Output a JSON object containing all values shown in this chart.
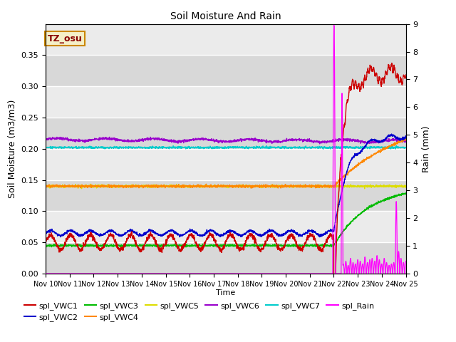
{
  "title": "Soil Moisture And Rain",
  "ylabel_left": "Soil Moisture (m3/m3)",
  "ylabel_right": "Rain (mm)",
  "xlabel": "Time",
  "annotation": "TZ_osu",
  "annotation_bg": "#f5f0c8",
  "annotation_border": "#cc8800",
  "annotation_text_color": "#880000",
  "ylim_left": [
    0.0,
    0.4
  ],
  "ylim_right": [
    0.0,
    9.0
  ],
  "xtick_labels": [
    "Nov 10",
    "Nov 11",
    "Nov 12",
    "Nov 13",
    "Nov 14",
    "Nov 15",
    "Nov 16",
    "Nov 17",
    "Nov 18",
    "Nov 19",
    "Nov 20",
    "Nov 21",
    "Nov 22",
    "Nov 23",
    "Nov 24",
    "Nov 25"
  ],
  "bg_light": "#ebebeb",
  "bg_dark": "#d8d8d8",
  "grid_color": "#ffffff",
  "yticks_left": [
    0.0,
    0.05,
    0.1,
    0.15,
    0.2,
    0.25,
    0.3,
    0.35
  ],
  "yticks_right": [
    0.0,
    1.0,
    2.0,
    3.0,
    4.0,
    5.0,
    6.0,
    7.0,
    8.0,
    9.0
  ],
  "colors": {
    "VWC1": "#cc0000",
    "VWC2": "#0000cc",
    "VWC3": "#00bb00",
    "VWC4": "#ff8800",
    "VWC5": "#dddd00",
    "VWC6": "#9900cc",
    "VWC7": "#00cccc",
    "Rain": "#ff00ff"
  }
}
